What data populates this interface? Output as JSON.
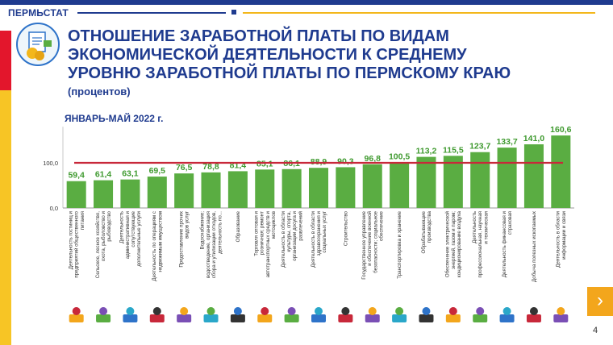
{
  "header": {
    "brand": "ПЕРМЬСТАТ",
    "title_line1": "ОТНОШЕНИЕ ЗАРАБОТНОЙ ПЛАТЫ ПО ВИДАМ",
    "title_line2": "ЭКОНОМИЧЕСКОЙ ДЕЯТЕЛЬНОСТИ К СРЕДНЕМУ",
    "title_line3": "УРОВНЮ ЗАРАБОТНОЙ ПЛАТЫ ПО ПЕРМСКОМУ КРАЮ",
    "subtitle": "(процентов)",
    "period": "ЯНВАРЬ-МАЙ  2022 г."
  },
  "page_number": "4",
  "nav": {
    "next_icon": "chevron-right-icon",
    "next_symbol": "›"
  },
  "colors": {
    "bar": "#5aad42",
    "reference_line": "#c8283a",
    "title": "#1f3b8f",
    "value_label": "#3f9a2f"
  },
  "chart_data": {
    "type": "bar",
    "title": "ОТНОШЕНИЕ ЗАРАБОТНОЙ ПЛАТЫ ПО ВИДАМ ЭКОНОМИЧЕСКОЙ ДЕЯТЕЛЬНОСТИ К СРЕДНЕМУ УРОВНЮ ЗАРАБОТНОЙ ПЛАТЫ ПО ПЕРМСКОМУ КРАЮ",
    "ylabel": "процентов",
    "ylim": [
      0,
      180
    ],
    "yticks": [
      {
        "value": 0,
        "label": "0,0"
      },
      {
        "value": 100,
        "label": "100,0"
      }
    ],
    "reference_value": 100,
    "categories": [
      [
        "Деятельность гостиниц и",
        "предприятий общественного",
        "питания"
      ],
      [
        "Сельское, лесное хозяйство,",
        "охота, рыболовство и",
        "рыбоводство"
      ],
      [
        "Деятельность",
        "административная и",
        "сопутствующие",
        "дополнительные услуги"
      ],
      [
        "Деятельность по операциям с",
        "недвижимым имуществом"
      ],
      [
        "Предоставление прочих",
        "видов услуг"
      ],
      [
        "Водоснабжение;",
        "водоотведение, организация",
        "сбора и утилизации отходов,",
        "деятельность по..."
      ],
      [
        "Образование"
      ],
      [
        "Торговля оптовая и",
        "розничная; ремонт",
        "автотранспортных средств и",
        "мотоциклов"
      ],
      [
        "Деятельность в области",
        "культуры, спорта,",
        "организации досуга и",
        "развлечений"
      ],
      [
        "Деятельность в области",
        "здравоохранения и",
        "социальных услуг"
      ],
      [
        "Строительство"
      ],
      [
        "Государственное управление",
        "и обеспечение военной",
        "безопасности; социальное",
        "обеспечение"
      ],
      [
        "Транспортировка и хранение"
      ],
      [
        "Обрабатывающие",
        "производства"
      ],
      [
        "Обеспечение электрической",
        "энергией, газом и паром;",
        "кондиционирование воздуха"
      ],
      [
        "Деятельность",
        "профессиональная, научная",
        "и техническая"
      ],
      [
        "Деятельность финансовая и",
        "страховая"
      ],
      [
        "Добыча полезных ископаемых"
      ],
      [
        "Деятельность в области",
        "информации и связи"
      ]
    ],
    "values": [
      59.4,
      61.4,
      63.1,
      69.5,
      76.5,
      78.8,
      81.4,
      85.1,
      86.1,
      88.9,
      90.3,
      96.8,
      100.5,
      113.2,
      115.5,
      123.7,
      133.7,
      141.0,
      160.6
    ],
    "value_labels": [
      "59,4",
      "61,4",
      "63,1",
      "69,5",
      "76,5",
      "78,8",
      "81,4",
      "85,1",
      "86,1",
      "88,9",
      "90,3",
      "96,8",
      "100,5",
      "113,2",
      "115,5",
      "123,7",
      "133,7",
      "141,0",
      "160,6"
    ],
    "icons": [
      "restaurant-icon",
      "agriculture-icon",
      "office-building-icon",
      "house-icon",
      "service-worker-icon",
      "water-pipe-icon",
      "graduation-cap-icon",
      "car-icon",
      "theater-icon",
      "medical-icon",
      "construction-icon",
      "tank-icon",
      "bus-icon",
      "gear-icon",
      "power-icon",
      "microscope-icon",
      "finance-icon",
      "mining-icon",
      "computer-icon"
    ]
  }
}
